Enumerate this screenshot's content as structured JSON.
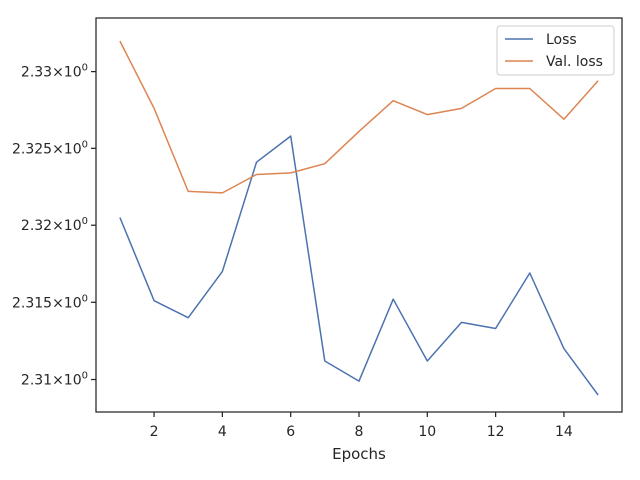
{
  "chart_data": {
    "type": "line",
    "title": "",
    "xlabel": "Epochs",
    "ylabel": "",
    "xlim": [
      0.3,
      15.7
    ],
    "ylim": [
      2.3079,
      2.3335
    ],
    "yscale": "log",
    "grid": false,
    "legend_position": "top-right",
    "x_ticks": [
      2,
      4,
      6,
      8,
      10,
      12,
      14
    ],
    "x_tick_labels": [
      "2",
      "4",
      "6",
      "8",
      "10",
      "12",
      "14"
    ],
    "y_ticks": [
      2.31,
      2.315,
      2.32,
      2.325,
      2.33
    ],
    "y_tick_labels": [
      "2.31",
      "2.315",
      "2.32",
      "2.325",
      "2.33"
    ],
    "y_tick_exponent": "0",
    "x": [
      1,
      2,
      3,
      4,
      5,
      6,
      7,
      8,
      9,
      10,
      11,
      12,
      13,
      14,
      15
    ],
    "series": [
      {
        "name": "Loss",
        "color": "#4c72b0",
        "values": [
          2.3205,
          2.3151,
          2.314,
          2.317,
          2.3241,
          2.3258,
          2.3112,
          2.3099,
          2.3152,
          2.3112,
          2.3137,
          2.3133,
          2.3169,
          2.312,
          2.309
        ]
      },
      {
        "name": "Val. loss",
        "color": "#dd8452",
        "values": [
          2.332,
          2.3276,
          2.3222,
          2.3221,
          2.3233,
          2.3234,
          2.324,
          2.3261,
          2.3281,
          2.3272,
          2.3276,
          2.3289,
          2.3289,
          2.3269,
          2.3294
        ]
      }
    ]
  }
}
